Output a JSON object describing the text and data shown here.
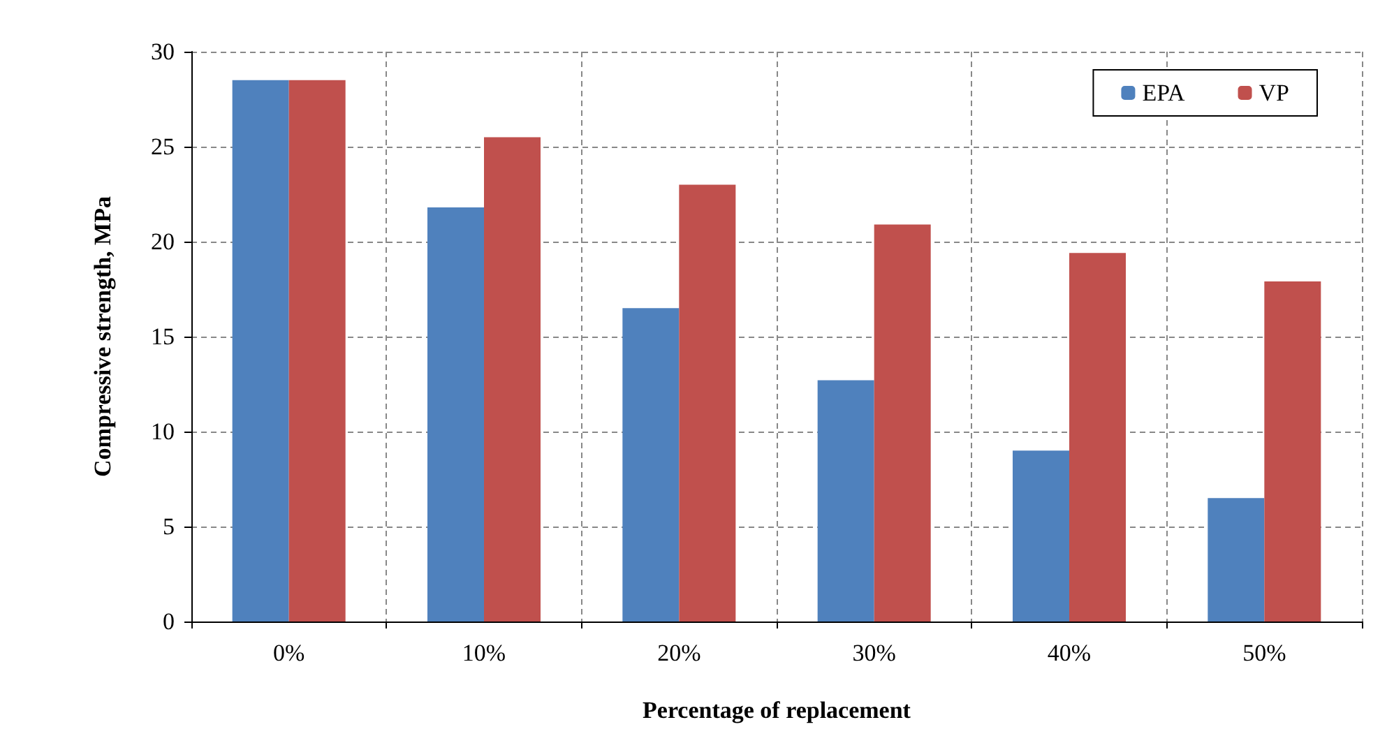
{
  "chart_data": {
    "type": "bar",
    "xlabel": "Percentage of replacement",
    "ylabel": "Compressive strength, MPa",
    "categories": [
      "0%",
      "10%",
      "20%",
      "30%",
      "40%",
      "50%"
    ],
    "series": [
      {
        "name": "EPA",
        "color": "#4f81bd",
        "values": [
          28.5,
          21.8,
          16.5,
          12.7,
          9.0,
          6.5
        ]
      },
      {
        "name": "VP",
        "color": "#c0504d",
        "values": [
          28.5,
          25.5,
          23.0,
          20.9,
          19.4,
          17.9
        ]
      }
    ],
    "ylim": [
      0,
      30
    ],
    "yticks": [
      0,
      5,
      10,
      15,
      20,
      25,
      30
    ],
    "grid": true,
    "legend": "top right"
  }
}
